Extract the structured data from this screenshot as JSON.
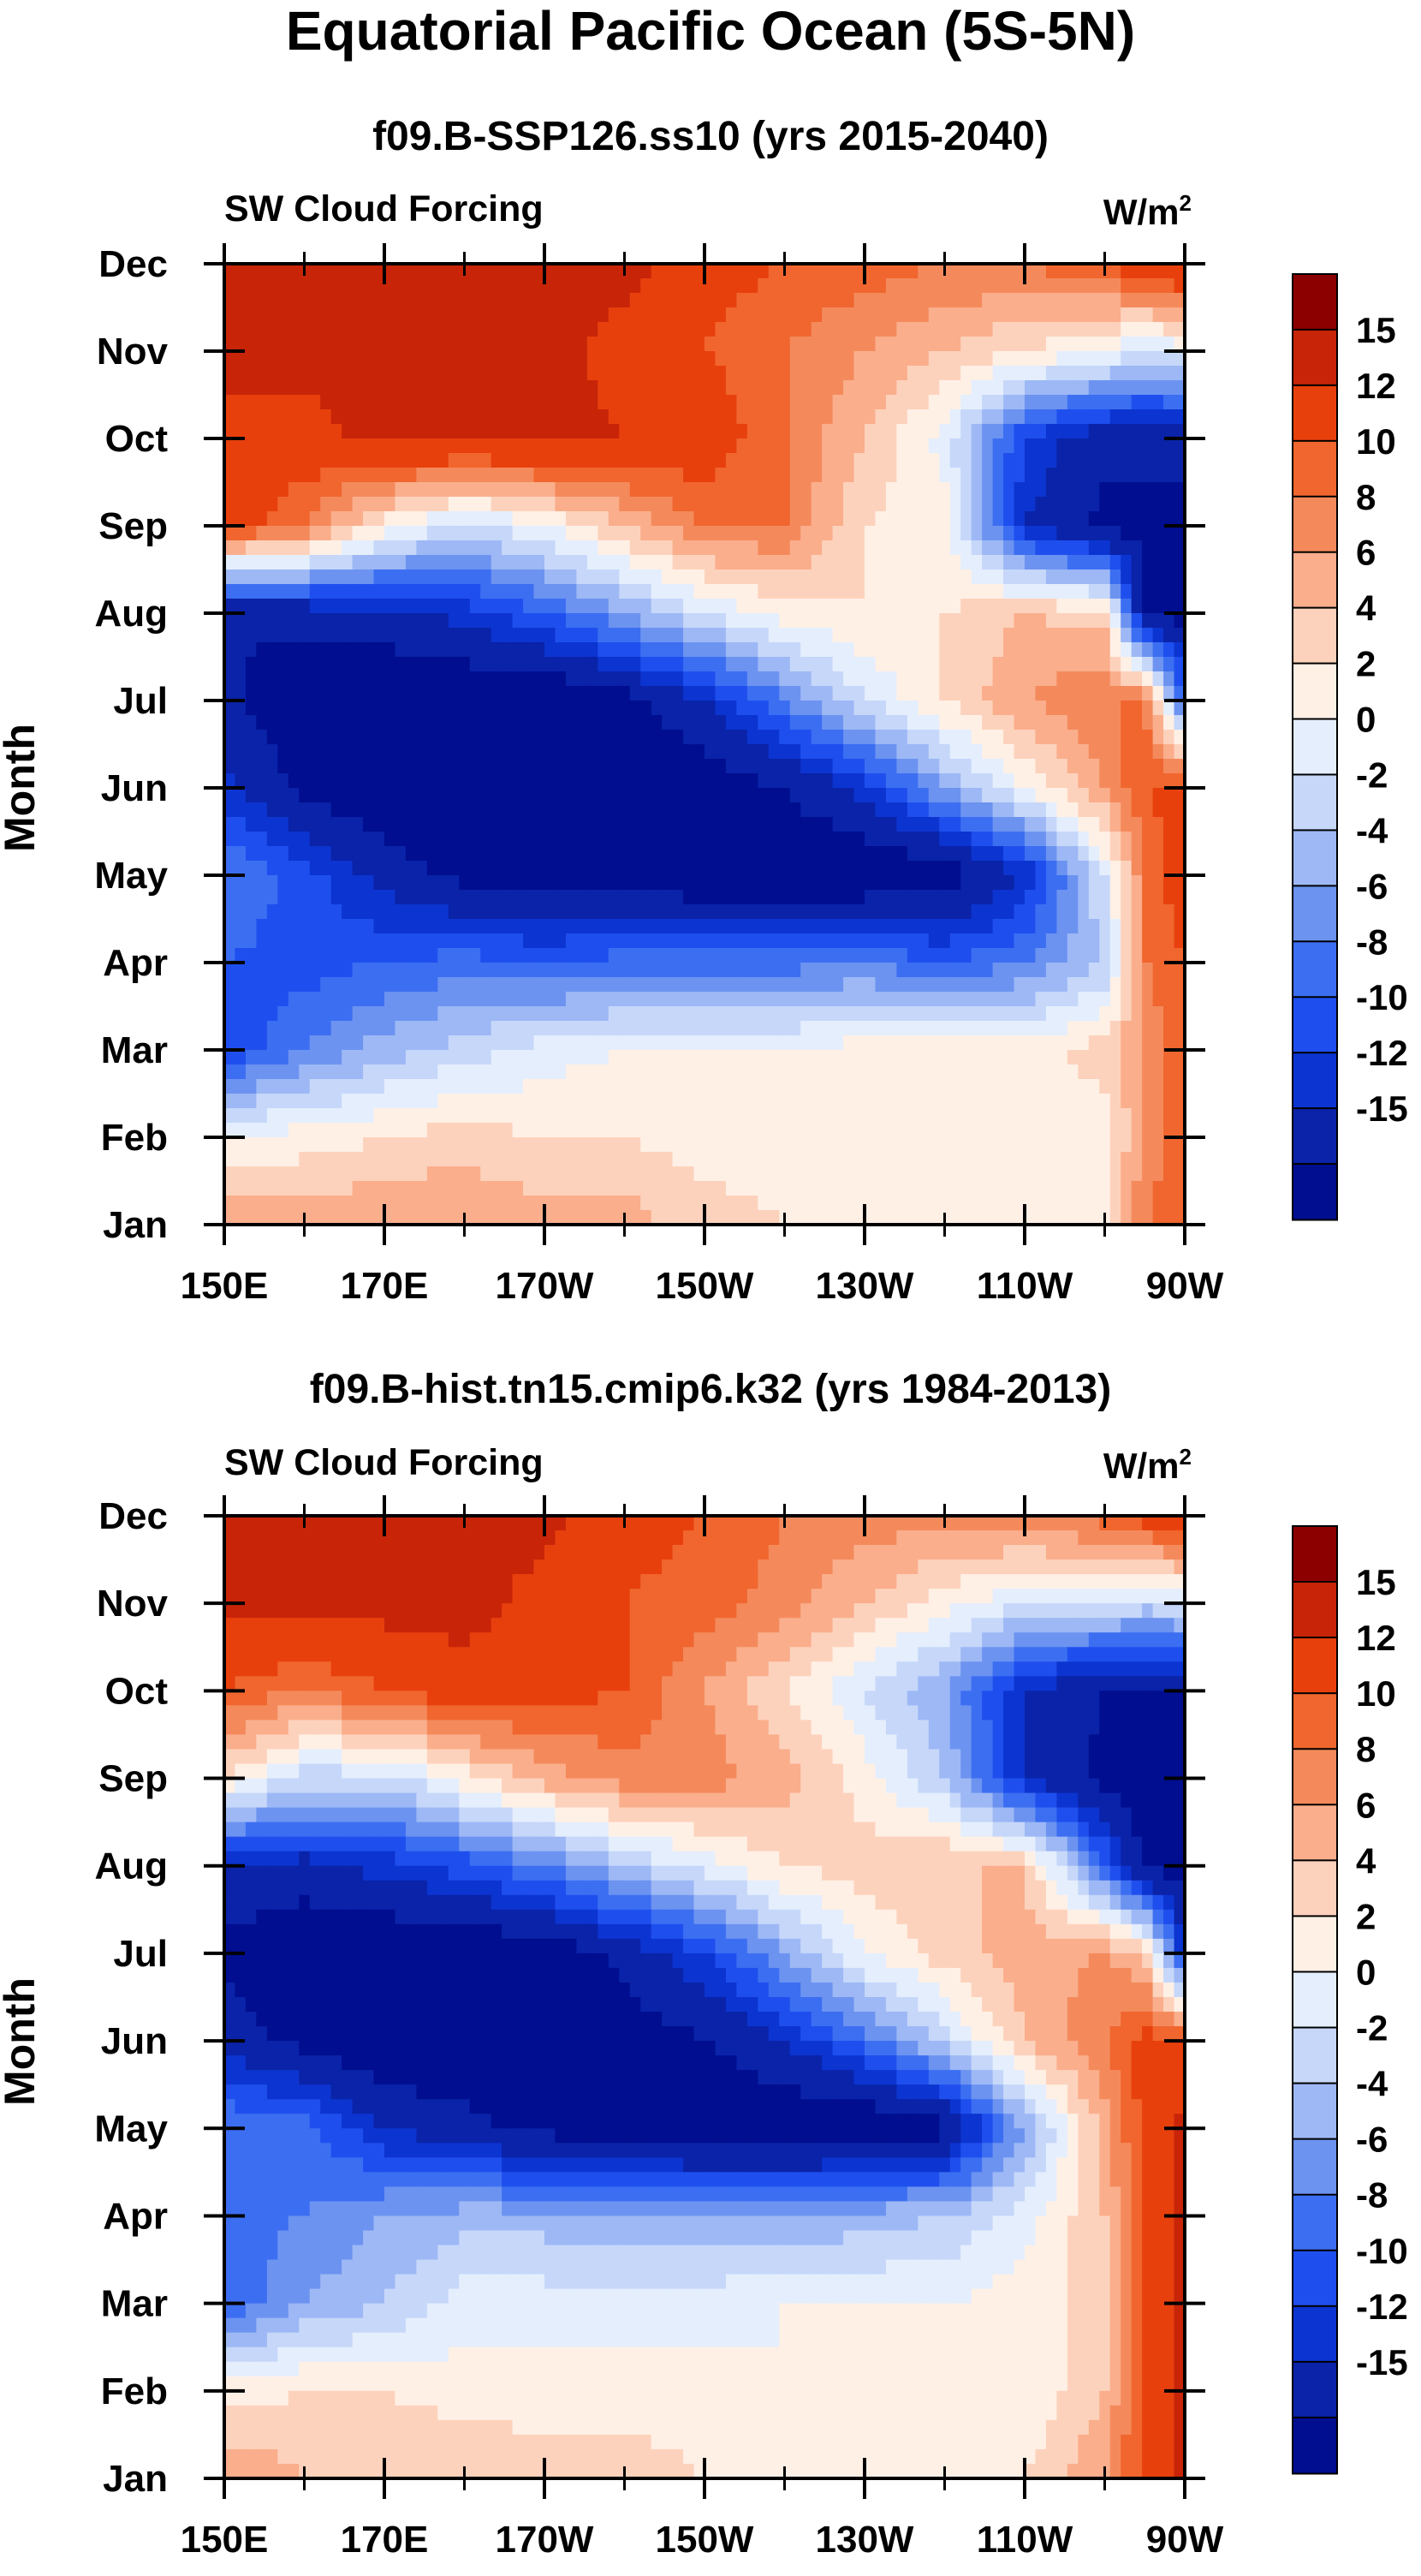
{
  "figure": {
    "title": "Equatorial Pacific Ocean (5S-5N)"
  },
  "colors": {
    "levels": [
      "#000e8f",
      "#0a23a8",
      "#0c34d0",
      "#1e4fee",
      "#3c6ef2",
      "#6c93f0",
      "#9db8f5",
      "#c6d7f9",
      "#e4eefd",
      "#fff0e6",
      "#fdd2bc",
      "#faae8c",
      "#f48a5c",
      "#f0662e",
      "#e8400d",
      "#c82408",
      "#8c0000"
    ],
    "grid_line": "#000000"
  },
  "chart_data": [
    {
      "type": "heatmap",
      "id": "top",
      "title": "f09.B-SSP126.ss10 (yrs 2015-2040)",
      "left_label": "SW Cloud Forcing",
      "units": "W/m2",
      "units_main": "W/m",
      "units_sup": "2",
      "ylabel": "Month",
      "xlabel": "",
      "x_ticks": [
        "150E",
        "170E",
        "170W",
        "150W",
        "130W",
        "110W",
        "90W"
      ],
      "y_ticks": [
        "Jan",
        "Feb",
        "Mar",
        "Apr",
        "May",
        "Jun",
        "Jul",
        "Aug",
        "Sep",
        "Oct",
        "Nov",
        "Dec"
      ],
      "xlim": [
        150,
        270
      ],
      "ylim": [
        1,
        12
      ],
      "colorbar_ticks": [
        "15",
        "12",
        "10",
        "8",
        "6",
        "4",
        "2",
        "0",
        "-2",
        "-4",
        "-6",
        "-8",
        "-10",
        "-12",
        "-15"
      ],
      "level_bounds": [
        -15,
        -12,
        -10,
        -8,
        -6,
        -4,
        -2,
        0,
        2,
        4,
        6,
        8,
        10,
        12,
        15
      ],
      "x": [
        150,
        160,
        170,
        180,
        190,
        200,
        210,
        220,
        230,
        240,
        250,
        260,
        265,
        270
      ],
      "months": [
        1,
        2,
        3,
        4,
        5,
        6,
        7,
        8,
        9,
        10,
        11,
        12
      ],
      "values": [
        [
          8,
          7,
          8,
          8,
          7,
          7,
          5,
          4,
          4,
          3,
          3,
          4,
          10,
          12
        ],
        [
          2,
          3,
          4,
          5,
          4,
          4,
          3,
          3,
          3,
          3,
          2,
          3,
          8,
          12
        ],
        [
          -10,
          -6,
          -3,
          -1,
          1,
          2,
          2,
          2,
          3,
          3,
          3,
          5,
          8,
          12
        ],
        [
          -8,
          -9,
          -8,
          -7,
          -8,
          -7,
          -7,
          -7,
          -6,
          -8,
          -6,
          -2,
          10,
          12
        ],
        [
          -6,
          -9,
          -13,
          -16,
          -17,
          -17,
          -18,
          -18,
          -18,
          -17,
          -12,
          0,
          10,
          14
        ],
        [
          -11,
          -16,
          -18,
          -18,
          -18,
          -18,
          -17,
          -15,
          -11,
          -4,
          2,
          8,
          12,
          13
        ],
        [
          -14,
          -18,
          -18,
          -18,
          -18,
          -16,
          -12,
          -6,
          0,
          4,
          8,
          10,
          10,
          -8
        ],
        [
          -15,
          -14,
          -13,
          -11,
          -8,
          -4,
          0,
          3,
          4,
          4,
          6,
          5,
          -16,
          -16
        ],
        [
          14,
          10,
          3,
          -1,
          2,
          6,
          10,
          10,
          4,
          3,
          -12,
          -16,
          -16,
          -16
        ],
        [
          14,
          14,
          16,
          16,
          16,
          15,
          14,
          10,
          6,
          1,
          -10,
          -14,
          -14,
          -14
        ],
        [
          16,
          16,
          16,
          16,
          16,
          14,
          12,
          10,
          8,
          6,
          4,
          2,
          0,
          1
        ],
        [
          16,
          16,
          16,
          16,
          16,
          16,
          13,
          12,
          11,
          10,
          10,
          12,
          14,
          16
        ]
      ]
    },
    {
      "type": "heatmap",
      "id": "bottom",
      "title": "f09.B-hist.tn15.cmip6.k32 (yrs 1984-2013)",
      "left_label": "SW Cloud Forcing",
      "units": "W/m2",
      "units_main": "W/m",
      "units_sup": "2",
      "ylabel": "Month",
      "xlabel": "",
      "x_ticks": [
        "150E",
        "170E",
        "170W",
        "150W",
        "130W",
        "110W",
        "90W"
      ],
      "y_ticks": [
        "Jan",
        "Feb",
        "Mar",
        "Apr",
        "May",
        "Jun",
        "Jul",
        "Aug",
        "Sep",
        "Oct",
        "Nov",
        "Dec"
      ],
      "xlim": [
        150,
        270
      ],
      "ylim": [
        1,
        12
      ],
      "colorbar_ticks": [
        "15",
        "12",
        "10",
        "8",
        "6",
        "4",
        "2",
        "0",
        "-2",
        "-4",
        "-6",
        "-8",
        "-10",
        "-12",
        "-15"
      ],
      "level_bounds": [
        -15,
        -12,
        -10,
        -8,
        -6,
        -4,
        -2,
        0,
        2,
        4,
        6,
        8,
        10,
        12,
        15
      ],
      "x": [
        150,
        160,
        170,
        180,
        190,
        200,
        210,
        220,
        230,
        240,
        250,
        260,
        265,
        270
      ],
      "months": [
        1,
        2,
        3,
        4,
        5,
        6,
        7,
        8,
        9,
        10,
        11,
        12
      ],
      "values": [
        [
          8,
          6,
          6,
          6,
          5,
          5,
          4,
          4,
          4,
          4,
          4,
          8,
          13,
          16
        ],
        [
          3,
          4,
          4,
          3,
          3,
          3,
          3,
          2,
          2,
          2,
          2,
          6,
          12,
          16
        ],
        [
          -8,
          -4,
          -2,
          1,
          1,
          1,
          1,
          2,
          2,
          2,
          3,
          5,
          12,
          16
        ],
        [
          -7,
          -6,
          -4,
          -3,
          -3,
          -4,
          -4,
          -4,
          -3,
          -2,
          1,
          6,
          12,
          16
        ],
        [
          -6,
          -7,
          -12,
          -14,
          -16,
          -17,
          -18,
          -18,
          -18,
          -16,
          -4,
          7,
          13,
          16
        ],
        [
          -13,
          -16,
          -18,
          -18,
          -18,
          -17,
          -15,
          -12,
          -7,
          -1,
          6,
          10,
          13,
          13
        ],
        [
          -16,
          -18,
          -18,
          -18,
          -17,
          -14,
          -10,
          -4,
          2,
          5,
          7,
          8,
          6,
          -12
        ],
        [
          -12,
          -13,
          -11,
          -9,
          -6,
          -2,
          1,
          4,
          5,
          6,
          6,
          -8,
          -16,
          -16
        ],
        [
          4,
          -1,
          -1,
          3,
          7,
          9,
          9,
          7,
          3,
          -2,
          -12,
          -16,
          -16,
          -16
        ],
        [
          12,
          10,
          12,
          14,
          13,
          12,
          8,
          4,
          0,
          -4,
          -12,
          -15,
          -15,
          -15
        ],
        [
          16,
          16,
          16,
          16,
          14,
          12,
          11,
          9,
          6,
          3,
          0,
          0,
          -1,
          0
        ],
        [
          16,
          16,
          16,
          16,
          16,
          13,
          12,
          10,
          9,
          9,
          10,
          11,
          13,
          16
        ]
      ]
    }
  ]
}
